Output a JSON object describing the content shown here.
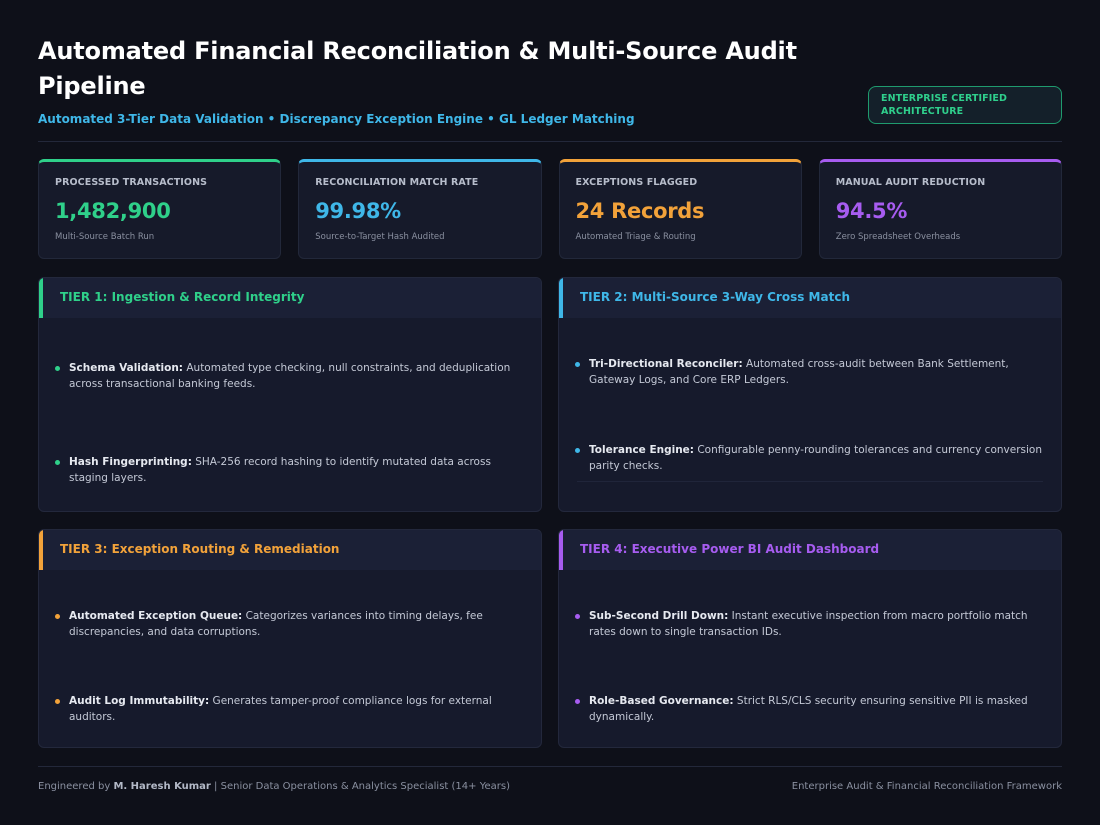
{
  "header": {
    "title": "Automated Financial Reconciliation & Multi-Source Audit Pipeline",
    "subtitle": "Automated 3-Tier Data Validation • Discrepancy Exception Engine • GL Ledger Matching",
    "badge": "ENTERPRISE CERTIFIED ARCHITECTURE"
  },
  "kpis": [
    {
      "label": "PROCESSED TRANSACTIONS",
      "value": "1,482,900",
      "caption": "Multi-Source Batch Run",
      "color": "#2fd08a"
    },
    {
      "label": "RECONCILIATION MATCH RATE",
      "value": "99.98%",
      "caption": "Source-to-Target Hash Audited",
      "color": "#3fb7e8"
    },
    {
      "label": "EXCEPTIONS FLAGGED",
      "value": "24 Records",
      "caption": "Automated Triage & Routing",
      "color": "#f2a23a"
    },
    {
      "label": "MANUAL AUDIT REDUCTION",
      "value": "94.5%",
      "caption": "Zero Spreadsheet Overheads",
      "color": "#a75cf0"
    }
  ],
  "tiers": [
    {
      "title": "TIER 1: Ingestion & Record Integrity",
      "color": "#2fd08a",
      "items": [
        {
          "term": "Schema Validation:",
          "text": " Automated type checking, null constraints, and deduplication across transactional banking feeds."
        },
        {
          "term": "Hash Fingerprinting:",
          "text": " SHA-256 record hashing to identify mutated data across staging layers."
        }
      ]
    },
    {
      "title": "TIER 2: Multi-Source 3-Way Cross Match",
      "color": "#3fb7e8",
      "items": [
        {
          "term": "Tri-Directional Reconciler:",
          "text": " Automated cross-audit between Bank Settlement, Gateway Logs, and Core ERP Ledgers."
        },
        {
          "term": "Tolerance Engine:",
          "text": " Configurable penny-rounding tolerances and currency conversion parity checks."
        }
      ]
    },
    {
      "title": "TIER 3: Exception Routing & Remediation",
      "color": "#f2a23a",
      "items": [
        {
          "term": "Automated Exception Queue:",
          "text": " Categorizes variances into timing delays, fee discrepancies, and data corruptions."
        },
        {
          "term": "Audit Log Immutability:",
          "text": " Generates tamper-proof compliance logs for external auditors."
        }
      ]
    },
    {
      "title": "TIER 4: Executive Power BI Audit Dashboard",
      "color": "#a75cf0",
      "items": [
        {
          "term": "Sub-Second Drill Down:",
          "text": " Instant executive inspection from macro portfolio match rates down to single transaction IDs."
        },
        {
          "term": "Role-Based Governance:",
          "text": " Strict RLS/CLS security ensuring sensitive PII is masked dynamically."
        }
      ]
    }
  ],
  "footer": {
    "prefix": "Engineered by ",
    "name": "M. Haresh Kumar",
    "suffix": " | Senior Data Operations & Analytics Specialist (14+ Years)",
    "right": "Enterprise Audit & Financial Reconciliation Framework"
  }
}
